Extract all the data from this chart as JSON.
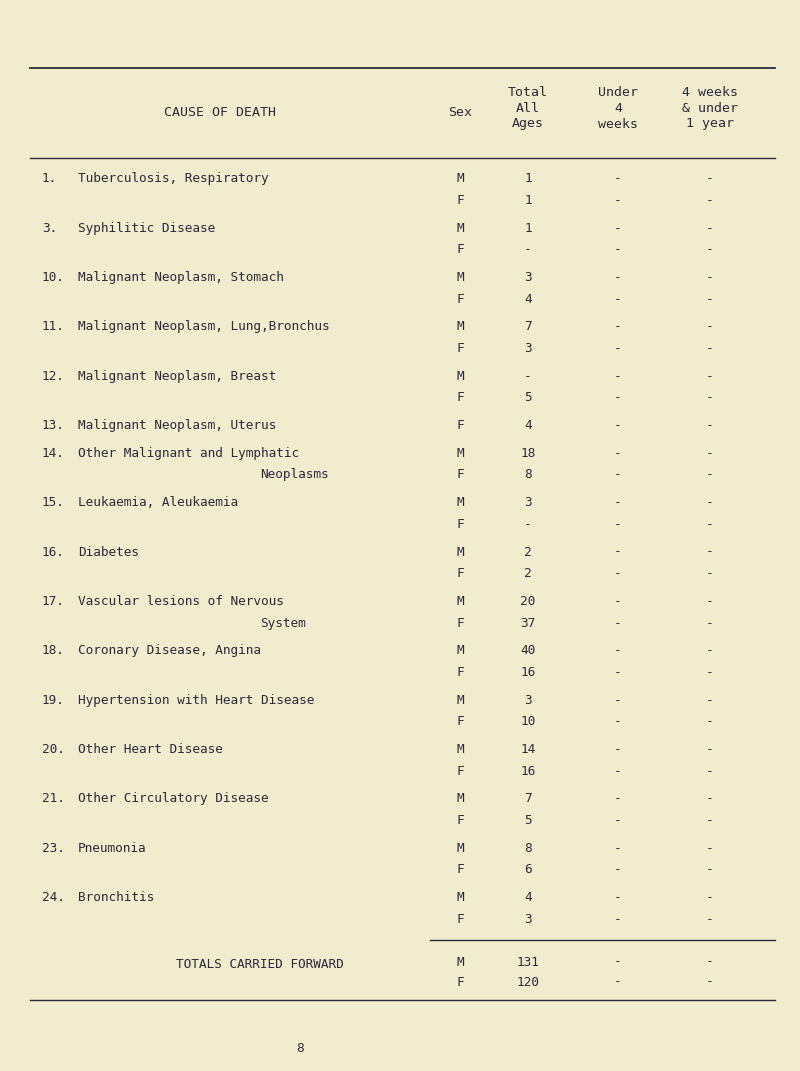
{
  "bg_color": "#f2ecce",
  "text_color": "#2a2a3a",
  "title_col1": "CAUSE OF DEATH",
  "title_col2": "Sex",
  "title_col3_line1": "Total",
  "title_col3_line2": "All",
  "title_col3_line3": "Ages",
  "title_col4_line1": "Under",
  "title_col4_line2": "4",
  "title_col4_line3": "weeks",
  "title_col5_line1": "4 weeks",
  "title_col5_line2": "& under",
  "title_col5_line3": "1 year",
  "page_number": "8",
  "rows": [
    {
      "num": "1.",
      "cause": "Tuberculosis, Respiratory",
      "cause_cont": "",
      "sex": "M",
      "total": "1",
      "col4": "-",
      "col5": "-",
      "new_group": true
    },
    {
      "num": "",
      "cause": "",
      "cause_cont": "",
      "sex": "F",
      "total": "1",
      "col4": "-",
      "col5": "-",
      "new_group": false
    },
    {
      "num": "3.",
      "cause": "Syphilitic Disease",
      "cause_cont": "",
      "sex": "M",
      "total": "1",
      "col4": "-",
      "col5": "-",
      "new_group": true
    },
    {
      "num": "",
      "cause": "",
      "cause_cont": "",
      "sex": "F",
      "total": "-",
      "col4": "-",
      "col5": "-",
      "new_group": false
    },
    {
      "num": "10.",
      "cause": "Malignant Neoplasm, Stomach",
      "cause_cont": "",
      "sex": "M",
      "total": "3",
      "col4": "-",
      "col5": "-",
      "new_group": true
    },
    {
      "num": "",
      "cause": "",
      "cause_cont": "",
      "sex": "F",
      "total": "4",
      "col4": "-",
      "col5": "-",
      "new_group": false
    },
    {
      "num": "11.",
      "cause": "Malignant Neoplasm, Lung,Bronchus",
      "cause_cont": "",
      "sex": "M",
      "total": "7",
      "col4": "-",
      "col5": "-",
      "new_group": true
    },
    {
      "num": "",
      "cause": "",
      "cause_cont": "",
      "sex": "F",
      "total": "3",
      "col4": "-",
      "col5": "-",
      "new_group": false
    },
    {
      "num": "12.",
      "cause": "Malignant Neoplasm, Breast",
      "cause_cont": "",
      "sex": "M",
      "total": "-",
      "col4": "-",
      "col5": "-",
      "new_group": true
    },
    {
      "num": "",
      "cause": "",
      "cause_cont": "",
      "sex": "F",
      "total": "5",
      "col4": "-",
      "col5": "-",
      "new_group": false
    },
    {
      "num": "13.",
      "cause": "Malignant Neoplasm, Uterus",
      "cause_cont": "",
      "sex": "F",
      "total": "4",
      "col4": "-",
      "col5": "-",
      "new_group": true
    },
    {
      "num": "14.",
      "cause": "Other Malignant and Lymphatic",
      "cause_cont": "Neoplasms",
      "sex": "M",
      "total": "18",
      "col4": "-",
      "col5": "-",
      "new_group": true
    },
    {
      "num": "",
      "cause": "",
      "cause_cont": "",
      "sex": "F",
      "total": "8",
      "col4": "-",
      "col5": "-",
      "new_group": false
    },
    {
      "num": "15.",
      "cause": "Leukaemia, Aleukaemia",
      "cause_cont": "",
      "sex": "M",
      "total": "3",
      "col4": "-",
      "col5": "-",
      "new_group": true
    },
    {
      "num": "",
      "cause": "",
      "cause_cont": "",
      "sex": "F",
      "total": "-",
      "col4": "-",
      "col5": "-",
      "new_group": false
    },
    {
      "num": "16.",
      "cause": "Diabetes",
      "cause_cont": "",
      "sex": "M",
      "total": "2",
      "col4": "-",
      "col5": "-",
      "new_group": true
    },
    {
      "num": "",
      "cause": "",
      "cause_cont": "",
      "sex": "F",
      "total": "2",
      "col4": "-",
      "col5": "-",
      "new_group": false
    },
    {
      "num": "17.",
      "cause": "Vascular lesions of Nervous",
      "cause_cont": "System",
      "sex": "M",
      "total": "20",
      "col4": "-",
      "col5": "-",
      "new_group": true
    },
    {
      "num": "",
      "cause": "",
      "cause_cont": "",
      "sex": "F",
      "total": "37",
      "col4": "-",
      "col5": "-",
      "new_group": false
    },
    {
      "num": "18.",
      "cause": "Coronary Disease, Angina",
      "cause_cont": "",
      "sex": "M",
      "total": "40",
      "col4": "-",
      "col5": "-",
      "new_group": true
    },
    {
      "num": "",
      "cause": "",
      "cause_cont": "",
      "sex": "F",
      "total": "16",
      "col4": "-",
      "col5": "-",
      "new_group": false
    },
    {
      "num": "19.",
      "cause": "Hypertension with Heart Disease",
      "cause_cont": "",
      "sex": "M",
      "total": "3",
      "col4": "-",
      "col5": "-",
      "new_group": true
    },
    {
      "num": "",
      "cause": "",
      "cause_cont": "",
      "sex": "F",
      "total": "10",
      "col4": "-",
      "col5": "-",
      "new_group": false
    },
    {
      "num": "20.",
      "cause": "Other Heart Disease",
      "cause_cont": "",
      "sex": "M",
      "total": "14",
      "col4": "-",
      "col5": "-",
      "new_group": true
    },
    {
      "num": "",
      "cause": "",
      "cause_cont": "",
      "sex": "F",
      "total": "16",
      "col4": "-",
      "col5": "-",
      "new_group": false
    },
    {
      "num": "21.",
      "cause": "Other Circulatory Disease",
      "cause_cont": "",
      "sex": "M",
      "total": "7",
      "col4": "-",
      "col5": "-",
      "new_group": true
    },
    {
      "num": "",
      "cause": "",
      "cause_cont": "",
      "sex": "F",
      "total": "5",
      "col4": "-",
      "col5": "-",
      "new_group": false
    },
    {
      "num": "23.",
      "cause": "Pneumonia",
      "cause_cont": "",
      "sex": "M",
      "total": "8",
      "col4": "-",
      "col5": "-",
      "new_group": true
    },
    {
      "num": "",
      "cause": "",
      "cause_cont": "",
      "sex": "F",
      "total": "6",
      "col4": "-",
      "col5": "-",
      "new_group": false
    },
    {
      "num": "24.",
      "cause": "Bronchitis",
      "cause_cont": "",
      "sex": "M",
      "total": "4",
      "col4": "-",
      "col5": "-",
      "new_group": true
    },
    {
      "num": "",
      "cause": "",
      "cause_cont": "",
      "sex": "F",
      "total": "3",
      "col4": "-",
      "col5": "-",
      "new_group": false
    }
  ],
  "totals_label": "TOTALS CARRIED FORWARD",
  "totals_M": "131",
  "totals_F": "120",
  "totals_col4": "-",
  "totals_col5": "-"
}
